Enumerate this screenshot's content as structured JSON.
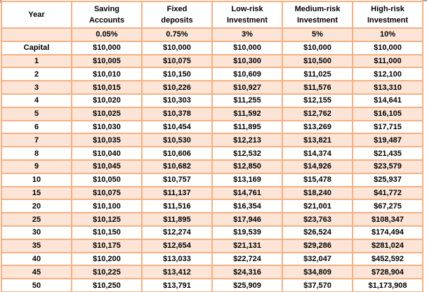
{
  "colors": {
    "row_fill": "#FCE4D6",
    "grid_border": "#F4B183",
    "text": "#000000",
    "scroll_fragment": "#A6A6A6"
  },
  "table": {
    "headers": [
      {
        "line1": "Year",
        "line2": ""
      },
      {
        "line1": "Saving",
        "line2": "Accounts"
      },
      {
        "line1": "Fixed",
        "line2": "deposits"
      },
      {
        "line1": "Low-risk",
        "line2": "Investment"
      },
      {
        "line1": "Medium-risk",
        "line2": "Investment"
      },
      {
        "line1": "High-risk",
        "line2": "Investment"
      }
    ],
    "rate_row": [
      "",
      "0.05%",
      "0.75%",
      "3%",
      "5%",
      "10%"
    ],
    "rows": [
      [
        "Capital",
        "$10,000",
        "$10,000",
        "$10,000",
        "$10,000",
        "$10,000"
      ],
      [
        "1",
        "$10,005",
        "$10,075",
        "$10,300",
        "$10,500",
        "$11,000"
      ],
      [
        "2",
        "$10,010",
        "$10,150",
        "$10,609",
        "$11,025",
        "$12,100"
      ],
      [
        "3",
        "$10,015",
        "$10,226",
        "$10,927",
        "$11,576",
        "$13,310"
      ],
      [
        "4",
        "$10,020",
        "$10,303",
        "$11,255",
        "$12,155",
        "$14,641"
      ],
      [
        "5",
        "$10,025",
        "$10,378",
        "$11,592",
        "$12,762",
        "$16,105"
      ],
      [
        "6",
        "$10,030",
        "$10,454",
        "$11,895",
        "$13,269",
        "$17,715"
      ],
      [
        "7",
        "$10,035",
        "$10,530",
        "$12,213",
        "$13,821",
        "$19,487"
      ],
      [
        "8",
        "$10,040",
        "$10,606",
        "$12,532",
        "$14,374",
        "$21,435"
      ],
      [
        "9",
        "$10,045",
        "$10,682",
        "$12,850",
        "$14,926",
        "$23,579"
      ],
      [
        "10",
        "$10,050",
        "$10,757",
        "$13,169",
        "$15,478",
        "$25,937"
      ],
      [
        "15",
        "$10,075",
        "$11,137",
        "$14,761",
        "$18,240",
        "$41,772"
      ],
      [
        "20",
        "$10,100",
        "$11,516",
        "$16,354",
        "$21,001",
        "$67,275"
      ],
      [
        "25",
        "$10,125",
        "$11,895",
        "$17,946",
        "$23,763",
        "$108,347"
      ],
      [
        "30",
        "$10,150",
        "$12,274",
        "$19,539",
        "$26,524",
        "$174,494"
      ],
      [
        "35",
        "$10,175",
        "$12,654",
        "$21,131",
        "$29,286",
        "$281,024"
      ],
      [
        "40",
        "$10,200",
        "$13,033",
        "$22,724",
        "$32,047",
        "$452,592"
      ],
      [
        "45",
        "$10,225",
        "$13,412",
        "$24,316",
        "$34,809",
        "$728,904"
      ],
      [
        "50",
        "$10,250",
        "$13,791",
        "$25,909",
        "$37,570",
        "$1,173,908"
      ]
    ]
  }
}
